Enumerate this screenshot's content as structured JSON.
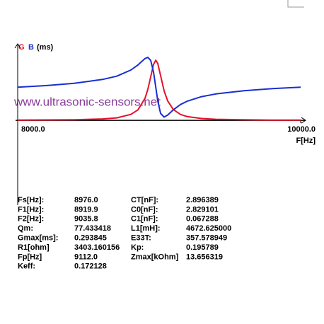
{
  "chart_data": {
    "type": "line",
    "y_label": "(ms)",
    "x_label": "F[Hz]",
    "watermark": "www.ultrasonic-sensors.net",
    "x": [
      8000,
      8200,
      8400,
      8600,
      8700,
      8800,
      8850,
      8900,
      8920,
      8940,
      8960,
      8976,
      8990,
      9010,
      9035,
      9060,
      9100,
      9150,
      9200,
      9300,
      9400,
      9600,
      9800,
      10000
    ],
    "series": [
      {
        "name": "G",
        "color": "#e8102a",
        "values": [
          0.001,
          0.002,
          0.003,
          0.007,
          0.012,
          0.029,
          0.051,
          0.108,
          0.152,
          0.212,
          0.273,
          0.294,
          0.278,
          0.219,
          0.144,
          0.095,
          0.053,
          0.029,
          0.018,
          0.009,
          0.005,
          0.003,
          0.001,
          0.001
        ]
      },
      {
        "name": "B",
        "color": "#1a2fd0",
        "values": [
          0.162,
          0.17,
          0.181,
          0.2,
          0.216,
          0.246,
          0.271,
          0.302,
          0.308,
          0.293,
          0.237,
          0.162,
          0.095,
          0.034,
          0.016,
          0.026,
          0.051,
          0.077,
          0.094,
          0.116,
          0.129,
          0.145,
          0.155,
          0.162
        ]
      }
    ],
    "xlim": [
      8000,
      10000
    ],
    "xticks": [
      {
        "value": 8000,
        "label": "8000.0"
      },
      {
        "value": 10000,
        "label": "10000.0"
      }
    ],
    "ylim": [
      -0.415,
      0.374
    ]
  },
  "parameters": [
    [
      "Fs[Hz]:",
      "8976.0",
      "CT[nF]:",
      "2.896389"
    ],
    [
      "F1[Hz]:",
      "8919.9",
      "C0[nF]:",
      "2.829101"
    ],
    [
      "F2[Hz]:",
      "9035.8",
      "C1[nF]:",
      "0.067288"
    ],
    [
      "Qm:",
      "77.433418",
      "L1[mH]:",
      "4672.625000"
    ],
    [
      "Gmax[ms]:",
      "0.293845",
      "E33T:",
      "357.578949"
    ],
    [
      "R1[ohm]",
      "3403.160156",
      "Kp:",
      "0.195789"
    ],
    [
      "Fp[Hz]",
      "9112.0",
      "Zmax[kOhm]",
      "13.656319"
    ],
    [
      "Keff:",
      "0.172128"
    ]
  ]
}
